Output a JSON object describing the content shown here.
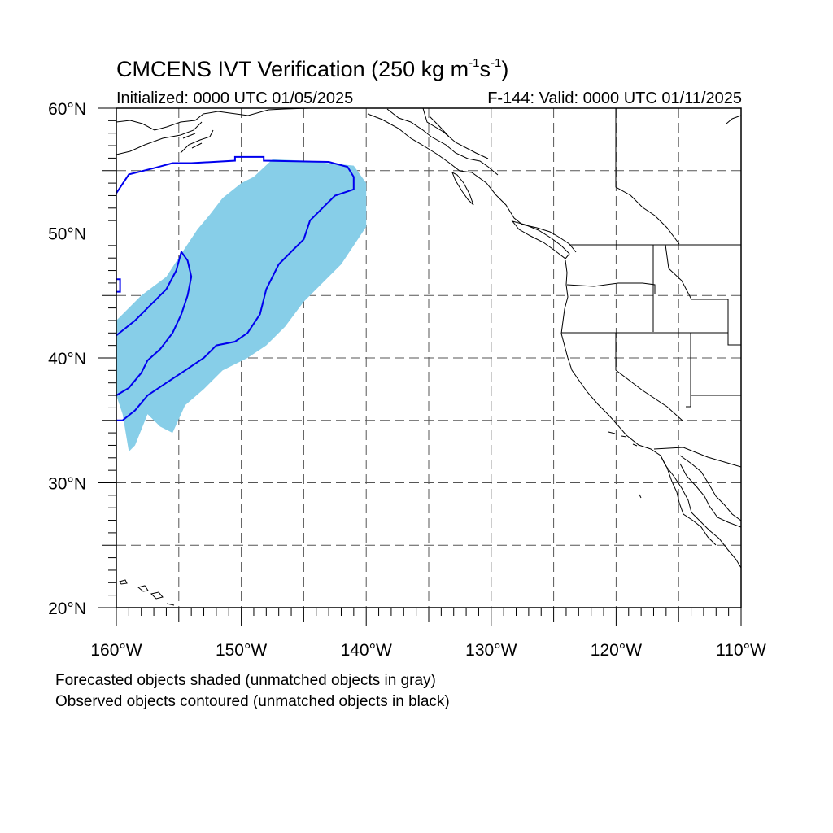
{
  "title": {
    "main": "CMCENS IVT Verification (250 kg m",
    "sup1": "-1",
    "mid": "s",
    "sup2": "-1",
    "end": ")"
  },
  "subtitle": {
    "left": "Initialized: 0000 UTC 01/05/2025",
    "right": "F-144: Valid: 0000 UTC 01/11/2025"
  },
  "map": {
    "lon_min": -160,
    "lon_max": -110,
    "lat_min": 20,
    "lat_max": 60,
    "lat_labels": [
      "20°N",
      "30°N",
      "40°N",
      "50°N",
      "60°N"
    ],
    "lon_labels": [
      "160°W",
      "150°W",
      "140°W",
      "130°W",
      "120°W",
      "110°W"
    ],
    "grid": "dashed every 5°",
    "colors": {
      "forecast_matched": "#87CEE8",
      "observed_matched": "#0000EE",
      "coastline": "#000000",
      "grid": "#555555"
    }
  },
  "legend": {
    "line1": "Forecasted objects shaded (unmatched objects in gray)",
    "line2": "Observed objects contoured (unmatched objects in black)"
  },
  "objects": {
    "forecast_shaded": {
      "color": "light-blue",
      "outline_lonlat": [
        [
          -147.5,
          55.9
        ],
        [
          -145,
          55.8
        ],
        [
          -141,
          55.4
        ],
        [
          -140,
          54
        ],
        [
          -140,
          50.5
        ],
        [
          -141,
          49
        ],
        [
          -142,
          47.5
        ],
        [
          -143.5,
          46
        ],
        [
          -145,
          44.5
        ],
        [
          -146.5,
          42.5
        ],
        [
          -148,
          41
        ],
        [
          -149.5,
          40
        ],
        [
          -151.5,
          39
        ],
        [
          -153,
          37.5
        ],
        [
          -154.5,
          36.2
        ],
        [
          -155.5,
          34
        ],
        [
          -156.5,
          34.5
        ],
        [
          -157.5,
          35.5
        ],
        [
          -158.5,
          33
        ],
        [
          -159,
          32.5
        ],
        [
          -159.5,
          35.5
        ],
        [
          -160,
          37
        ],
        [
          -160,
          43
        ],
        [
          -158,
          45
        ],
        [
          -156,
          46.5
        ],
        [
          -154.5,
          48.8
        ],
        [
          -153.5,
          50.3
        ],
        [
          -152.5,
          51.5
        ],
        [
          -151.5,
          52.8
        ],
        [
          -150,
          54
        ],
        [
          -149,
          54.5
        ]
      ]
    },
    "observed_contour_large": {
      "color": "blue",
      "outline_lonlat": [
        [
          -160,
          53.2
        ],
        [
          -159,
          54.7
        ],
        [
          -157,
          55.2
        ],
        [
          -155.5,
          55.6
        ],
        [
          -154,
          55.6
        ],
        [
          -150.5,
          55.8
        ],
        [
          -150.5,
          56.1
        ],
        [
          -148.2,
          56.1
        ],
        [
          -148.2,
          55.8
        ],
        [
          -143,
          55.7
        ],
        [
          -141.5,
          55.3
        ],
        [
          -141,
          54.5
        ],
        [
          -141,
          53.5
        ],
        [
          -142.5,
          53
        ],
        [
          -143.5,
          52
        ],
        [
          -144.5,
          51
        ],
        [
          -145,
          49.5
        ],
        [
          -146,
          48.5
        ],
        [
          -147,
          47.5
        ],
        [
          -148,
          45.5
        ],
        [
          -148.5,
          43.5
        ],
        [
          -149.5,
          42
        ],
        [
          -150.5,
          41.3
        ],
        [
          -152,
          41
        ],
        [
          -153,
          40
        ],
        [
          -154.5,
          39
        ],
        [
          -156,
          38
        ],
        [
          -157.5,
          37
        ],
        [
          -158.5,
          35.8
        ],
        [
          -159.5,
          35
        ],
        [
          -160,
          35
        ]
      ]
    },
    "observed_contour_mid": {
      "color": "blue",
      "outline_lonlat": [
        [
          -160,
          37
        ],
        [
          -159,
          37.6
        ],
        [
          -158,
          38.8
        ],
        [
          -157.5,
          39.8
        ],
        [
          -156.5,
          40.7
        ],
        [
          -155.5,
          42
        ],
        [
          -154.8,
          43.5
        ],
        [
          -154.3,
          45
        ],
        [
          -154,
          46.5
        ],
        [
          -154.3,
          47.8
        ],
        [
          -154.8,
          48.5
        ],
        [
          -155.2,
          47
        ],
        [
          -156,
          45.5
        ],
        [
          -157,
          44.5
        ],
        [
          -158.5,
          43
        ],
        [
          -160,
          41.8
        ]
      ]
    },
    "observed_contour_edge": {
      "color": "blue",
      "outline_lonlat": [
        [
          -160,
          46.3
        ],
        [
          -159.7,
          46.3
        ],
        [
          -159.7,
          45.3
        ],
        [
          -160,
          45.3
        ]
      ]
    }
  }
}
